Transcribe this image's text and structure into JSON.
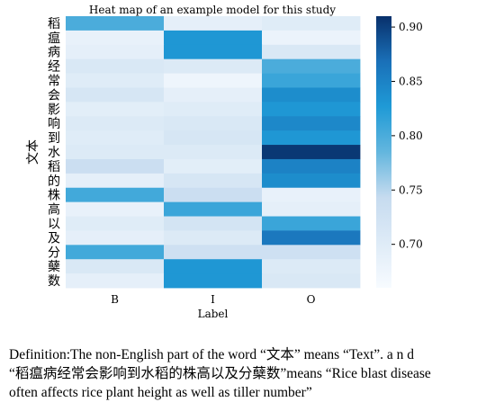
{
  "chart_data": {
    "type": "heatmap",
    "title": "Heat map of an example model for this study",
    "xlabel": "Label",
    "ylabel": "文本",
    "x_categories": [
      "B",
      "I",
      "O"
    ],
    "y_categories": [
      "稻",
      "瘟",
      "病",
      "经",
      "常",
      "会",
      "影",
      "响",
      "到",
      "水",
      "稻",
      "的",
      "株",
      "高",
      "以",
      "及",
      "分",
      "蘖",
      "数"
    ],
    "values": [
      [
        0.8,
        0.69,
        0.7
      ],
      [
        0.685,
        0.83,
        0.68
      ],
      [
        0.69,
        0.83,
        0.71
      ],
      [
        0.71,
        0.705,
        0.8
      ],
      [
        0.7,
        0.675,
        0.81
      ],
      [
        0.715,
        0.69,
        0.84
      ],
      [
        0.695,
        0.7,
        0.83
      ],
      [
        0.705,
        0.71,
        0.845
      ],
      [
        0.7,
        0.715,
        0.83
      ],
      [
        0.705,
        0.705,
        0.905
      ],
      [
        0.735,
        0.695,
        0.85
      ],
      [
        0.69,
        0.715,
        0.84
      ],
      [
        0.805,
        0.735,
        0.685
      ],
      [
        0.685,
        0.81,
        0.69
      ],
      [
        0.7,
        0.72,
        0.81
      ],
      [
        0.69,
        0.705,
        0.86
      ],
      [
        0.805,
        0.73,
        0.73
      ],
      [
        0.71,
        0.83,
        0.705
      ],
      [
        0.69,
        0.83,
        0.71
      ]
    ],
    "colorbar": {
      "range": [
        0.66,
        0.91
      ],
      "ticks": [
        "0.70",
        "0.75",
        "0.80",
        "0.85",
        "0.90"
      ],
      "tick_values": [
        0.7,
        0.75,
        0.8,
        0.85,
        0.9
      ],
      "colormap": [
        "#f7fbff",
        "#deebf7",
        "#c6dbef",
        "#63b6de",
        "#1f9ad6",
        "#1a70b8",
        "#08306b"
      ]
    }
  },
  "caption": {
    "line1": "Definition:The non-English part of the word “文本” means “Text”. a n d",
    "line2": "“稻瘟病经常会影响到水稻的株高以及分蘖数”means “Rice blast disease",
    "line3": "often affects rice plant height as well as tiller number”"
  }
}
